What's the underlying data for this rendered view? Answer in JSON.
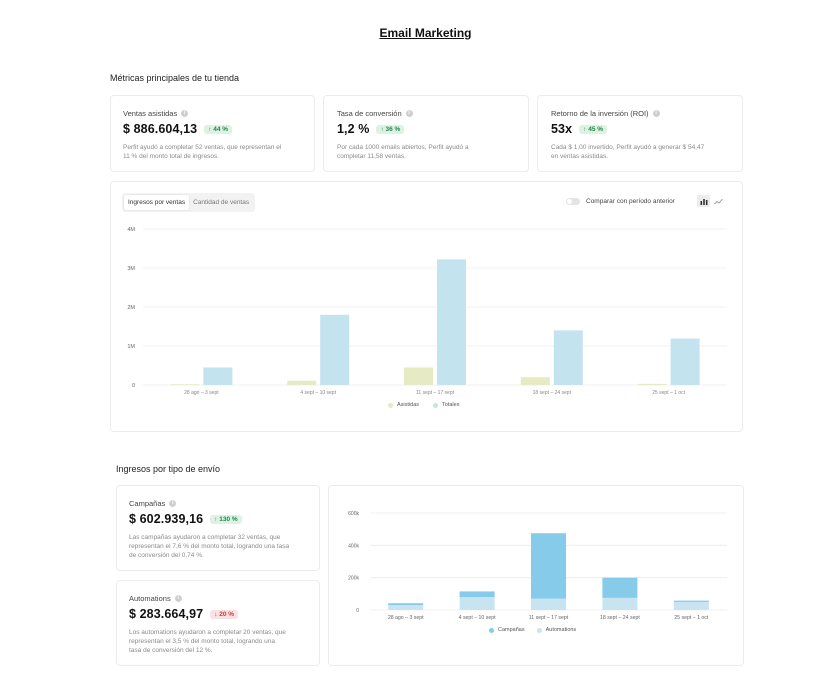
{
  "page": {
    "title": "Email Marketing"
  },
  "metrics_section": {
    "title": "Métricas principales de tu tienda",
    "cards": [
      {
        "label": "Ventas asistidas",
        "value": "$ 886.604,13",
        "badge": "↑ 44 %",
        "desc_line1": "Perfit ayudó a completar 52 ventas, que representan el",
        "desc_line2": "11 % del monto total de ingresos."
      },
      {
        "label": "Tasa de conversión",
        "value": "1,2 %",
        "badge": "↑ 36 %",
        "desc_line1": "Por cada 1000 emails abiertos, Perfit ayudó a",
        "desc_line2": "completar 11,58 ventas."
      },
      {
        "label": "Retorno de la inversión (ROI)",
        "value": "53x",
        "badge": "↑ 45 %",
        "desc_line1": "Cada $ 1,00 invertido, Perfit ayudó a generar $ 54,47",
        "desc_line2": "en ventas asistidas."
      }
    ]
  },
  "revenue_chart": {
    "tabs": [
      "Ingresos por ventas",
      "Cantidad de ventas"
    ],
    "compare_label": "Comparar con período anterior",
    "y_tick_labels": [
      "0",
      "1M",
      "2M",
      "3M",
      "4M"
    ],
    "x_tick_labels": [
      "28 ago – 3 sept",
      "4 sept – 10 sept",
      "11 sept – 17 sept",
      "18 sept – 24 sept",
      "25 sept – 1 oct"
    ],
    "legend": [
      "Asistidas",
      "Totales"
    ],
    "colors": {
      "asistidas": "#e6ebc4",
      "totales": "#c3e3ee"
    }
  },
  "shipping_section": {
    "title": "Ingresos por tipo de envío",
    "cards": [
      {
        "label": "Campañas",
        "value": "$ 602.939,16",
        "badge": "↑ 130 %",
        "badge_type": "up",
        "desc_line1": "Las campañas ayudaron a completar 32 ventas, que",
        "desc_line2": "representan el 7,6 % del monto total, logrando una tasa",
        "desc_line3": "de conversión del 0,74 %."
      },
      {
        "label": "Automations",
        "value": "$ 283.664,97",
        "badge": "↓ 20 %",
        "badge_type": "down",
        "desc_line1": "Los automations ayudaron a completar 20 ventas, que",
        "desc_line2": "representan el 3,5 % del monto total, logrando una",
        "desc_line3": "tasa de conversión del 12 %."
      }
    ]
  },
  "chart_data": [
    {
      "type": "bar",
      "title": "",
      "categories": [
        "28 ago – 3 sept",
        "4 sept – 10 sept",
        "11 sept – 17 sept",
        "18 sept – 24 sept",
        "25 sept – 1 oct"
      ],
      "series": [
        {
          "name": "Asistidas",
          "values": [
            20000,
            110000,
            450000,
            200000,
            30000
          ]
        },
        {
          "name": "Totales",
          "values": [
            450000,
            1800000,
            3220000,
            1400000,
            1190000
          ]
        }
      ],
      "ylim": [
        0,
        4000000
      ],
      "grid": true,
      "legend_position": "bottom"
    },
    {
      "type": "bar",
      "stacked": true,
      "title": "",
      "categories": [
        "28 ago – 3 sept",
        "4 sept – 10 sept",
        "11 sept – 17 sept",
        "18 sept – 24 sept",
        "25 sept – 1 oct"
      ],
      "y_tick_labels": [
        "0",
        "200k",
        "400k",
        "600k"
      ],
      "series": [
        {
          "name": "Automations",
          "values": [
            30000,
            80000,
            70000,
            75000,
            50000
          ]
        },
        {
          "name": "Campañas",
          "values": [
            12000,
            35000,
            405000,
            125000,
            8000
          ]
        }
      ],
      "ylim": [
        0,
        600000
      ],
      "grid": true,
      "legend_position": "bottom",
      "colors": {
        "campanas": "#86cbe9",
        "automations": "#c8e4f1"
      }
    }
  ]
}
